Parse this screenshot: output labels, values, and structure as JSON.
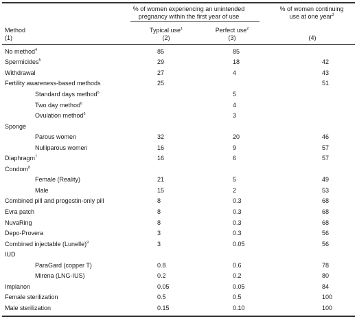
{
  "header": {
    "method_label": "Method",
    "method_num": "(1)",
    "group_title_line1": "% of women experiencing an unintended",
    "group_title_line2": "pregnancy within the first year of use",
    "typical_label": "Typical use",
    "typical_sup": "1",
    "typical_num": "(2)",
    "perfect_label": "Perfect use",
    "perfect_sup": "2",
    "perfect_num": "(3)",
    "continuing_line1": "% of women continuing",
    "continuing_line2": "use at one year",
    "continuing_sup": "3",
    "continuing_num": "(4)"
  },
  "rows": [
    {
      "method": "No method",
      "sup": "4",
      "indent": false,
      "typical": "85",
      "perfect": "85",
      "continuing": ""
    },
    {
      "method": "Spermicides",
      "sup": "5",
      "indent": false,
      "typical": "29",
      "perfect": "18",
      "continuing": "42"
    },
    {
      "method": "Withdrawal",
      "sup": "",
      "indent": false,
      "typical": "27",
      "perfect": "4",
      "continuing": "43"
    },
    {
      "method": "Fertility awareness-based methods",
      "sup": "",
      "indent": false,
      "typical": "25",
      "perfect": "",
      "continuing": "51"
    },
    {
      "method": "Standard days method",
      "sup": "6",
      "indent": true,
      "typical": "",
      "perfect": "5",
      "continuing": ""
    },
    {
      "method": "Two day method",
      "sup": "6",
      "indent": true,
      "typical": "",
      "perfect": "4",
      "continuing": ""
    },
    {
      "method": "Ovulation method",
      "sup": "6",
      "indent": true,
      "typical": "",
      "perfect": "3",
      "continuing": ""
    },
    {
      "method": "Sponge",
      "sup": "",
      "indent": false,
      "typical": "",
      "perfect": "",
      "continuing": ""
    },
    {
      "method": "Parous women",
      "sup": "",
      "indent": true,
      "typical": "32",
      "perfect": "20",
      "continuing": "46"
    },
    {
      "method": "Nulliparous women",
      "sup": "",
      "indent": true,
      "typical": "16",
      "perfect": "9",
      "continuing": "57"
    },
    {
      "method": "Diaphragm",
      "sup": "7",
      "indent": false,
      "typical": "16",
      "perfect": "6",
      "continuing": "57"
    },
    {
      "method": "Condom",
      "sup": "8",
      "indent": false,
      "typical": "",
      "perfect": "",
      "continuing": ""
    },
    {
      "method": "Female (Reality)",
      "sup": "",
      "indent": true,
      "typical": "21",
      "perfect": "5",
      "continuing": "49"
    },
    {
      "method": "Male",
      "sup": "",
      "indent": true,
      "typical": "15",
      "perfect": "2",
      "continuing": "53"
    },
    {
      "method": "Combined pill and progestin-only pill",
      "sup": "",
      "indent": false,
      "typical": "8",
      "perfect": "0.3",
      "continuing": "68"
    },
    {
      "method": "Evra patch",
      "sup": "",
      "indent": false,
      "typical": "8",
      "perfect": "0.3",
      "continuing": "68"
    },
    {
      "method": "NuvaRing",
      "sup": "",
      "indent": false,
      "typical": "8",
      "perfect": "0.3",
      "continuing": "68"
    },
    {
      "method": "Depo-Provera",
      "sup": "",
      "indent": false,
      "typical": "3",
      "perfect": "0.3",
      "continuing": "56"
    },
    {
      "method": "Combined injectable (Lunelle)",
      "sup": "9",
      "indent": false,
      "typical": "3",
      "perfect": "0.05",
      "continuing": "56"
    },
    {
      "method": "IUD",
      "sup": "",
      "indent": false,
      "typical": "",
      "perfect": "",
      "continuing": ""
    },
    {
      "method": "ParaGard (copper T)",
      "sup": "",
      "indent": true,
      "typical": "0.8",
      "perfect": "0.6",
      "continuing": "78"
    },
    {
      "method": "Mirena (LNG-IUS)",
      "sup": "",
      "indent": true,
      "typical": "0.2",
      "perfect": "0.2",
      "continuing": "80"
    },
    {
      "method": "Implanon",
      "sup": "",
      "indent": false,
      "typical": "0.05",
      "perfect": "0.05",
      "continuing": "84"
    },
    {
      "method": "Female sterilization",
      "sup": "",
      "indent": false,
      "typical": "0.5",
      "perfect": "0.5",
      "continuing": "100"
    },
    {
      "method": "Male sterilization",
      "sup": "",
      "indent": false,
      "typical": "0.15",
      "perfect": "0.10",
      "continuing": "100"
    }
  ]
}
